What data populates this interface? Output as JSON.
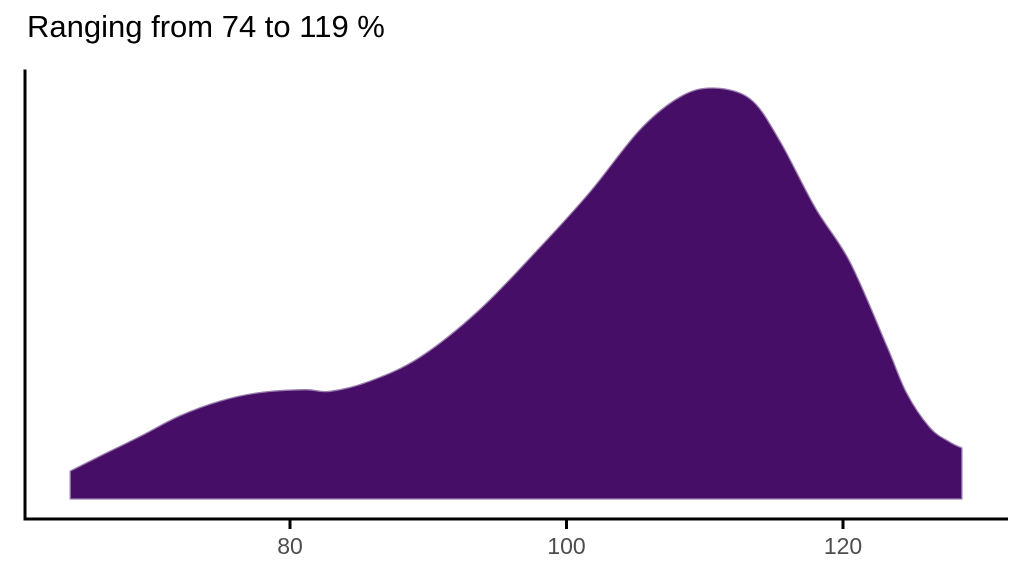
{
  "title": "Ranging from 74 to 119 %",
  "chart_data": {
    "type": "area",
    "subtype": "density",
    "title": "Ranging from 74 to 119 %",
    "xlabel": "",
    "ylabel": "",
    "legend": null,
    "grid": false,
    "x_ticks": [
      80,
      100,
      120
    ],
    "x_tick_labels": [
      "80",
      "100",
      "120"
    ],
    "xlim": [
      64.1,
      128.6
    ],
    "ylim_relative": [
      0,
      1
    ],
    "range_stated_in_title": {
      "min_percent": 74,
      "max_percent": 119
    },
    "peak_x": 110.6,
    "curve": {
      "x": [
        64.1,
        66.3,
        69.2,
        72.0,
        74.9,
        77.8,
        81.1,
        82.9,
        85.8,
        89.4,
        93.7,
        98.1,
        101.7,
        105.3,
        108.2,
        110.6,
        113.3,
        115.4,
        118.0,
        120.5,
        123.2,
        124.6,
        126.3,
        127.7,
        128.6
      ],
      "density_relative": [
        0.068,
        0.105,
        0.153,
        0.202,
        0.238,
        0.259,
        0.266,
        0.262,
        0.287,
        0.345,
        0.46,
        0.613,
        0.747,
        0.898,
        0.978,
        1.0,
        0.973,
        0.873,
        0.708,
        0.577,
        0.37,
        0.258,
        0.173,
        0.139,
        0.124
      ]
    },
    "colors": {
      "fill": "#470E67",
      "outline": "#9b7fae",
      "axis": "#000000",
      "tick_label": "#4d4d4d",
      "title": "#000000"
    }
  }
}
